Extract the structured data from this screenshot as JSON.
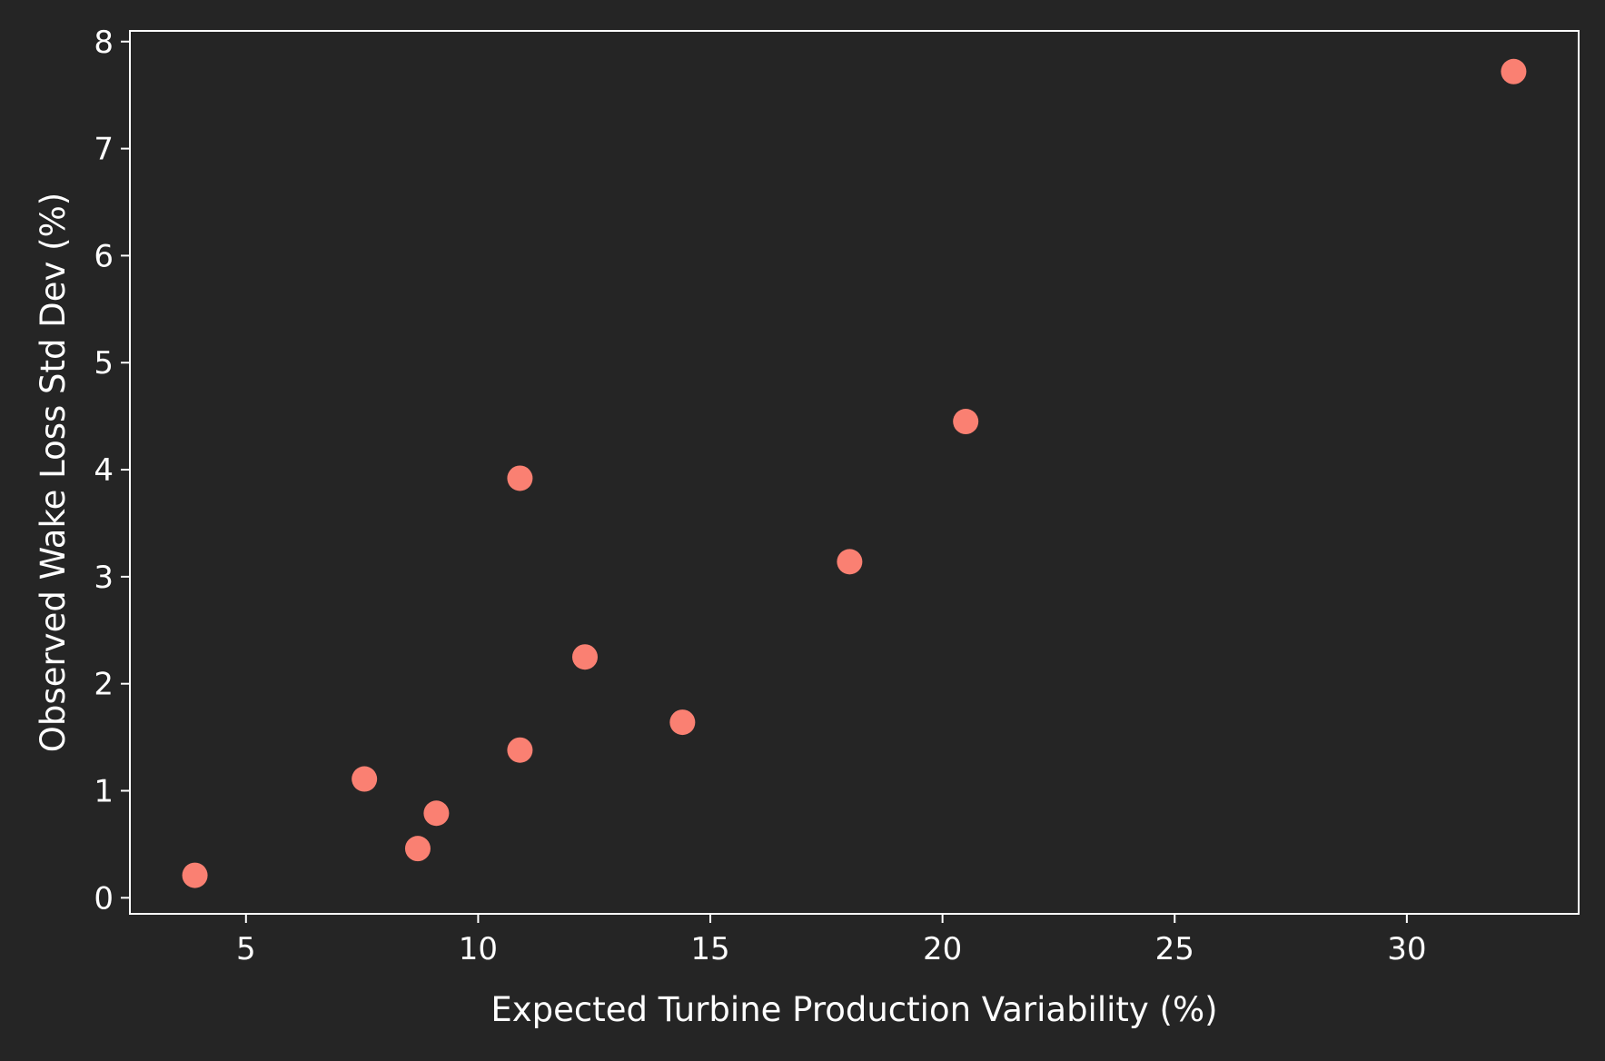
{
  "chart_data": {
    "type": "scatter",
    "title": "",
    "xlabel": "Expected Turbine Production Variability (%)",
    "ylabel": "Observed Wake Loss Std Dev (%)",
    "xlim": [
      2.5,
      33.7
    ],
    "ylim": [
      -0.15,
      8.1
    ],
    "xticks": [
      5,
      10,
      15,
      20,
      25,
      30
    ],
    "yticks": [
      0,
      1,
      2,
      3,
      4,
      5,
      6,
      7,
      8
    ],
    "grid": false,
    "legend": "none",
    "marker_color": "#fa8072",
    "background_color": "#252525",
    "axes_color": "#ffffff",
    "points": [
      {
        "x": 3.9,
        "y": 0.21
      },
      {
        "x": 7.55,
        "y": 1.11
      },
      {
        "x": 8.7,
        "y": 0.46
      },
      {
        "x": 9.1,
        "y": 0.79
      },
      {
        "x": 10.9,
        "y": 3.92
      },
      {
        "x": 10.9,
        "y": 1.38
      },
      {
        "x": 12.3,
        "y": 2.25
      },
      {
        "x": 14.4,
        "y": 1.64
      },
      {
        "x": 18.0,
        "y": 3.14
      },
      {
        "x": 20.5,
        "y": 4.45
      },
      {
        "x": 32.3,
        "y": 7.72
      }
    ]
  }
}
